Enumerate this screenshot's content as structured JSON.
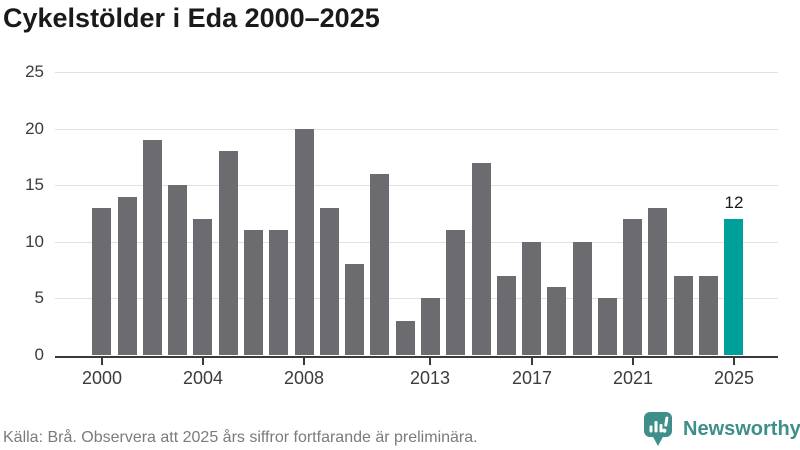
{
  "title": "Cykelstölder i Eda 2000–2025",
  "footer": {
    "source_note": "Källa: Brå. Observera att 2025 års siffror fortfarande är preliminära.",
    "brand_name": "Newsworthy",
    "brand_icon": "newsworthy-chart-bubble-icon"
  },
  "colors": {
    "bar": "#6c6b70",
    "highlight": "#00a09a",
    "brand": "#3e8e8a",
    "grid": "#e1e1e1",
    "axis": "#3a3a3a",
    "tick_label": "#3c3c3c",
    "title_text": "#1a1a1a",
    "source_text": "#7b7b7b"
  },
  "chart_data": {
    "type": "bar",
    "title": "Cykelstölder i Eda 2000–2025",
    "categories": [
      2000,
      2001,
      2002,
      2003,
      2004,
      2005,
      2006,
      2007,
      2008,
      2009,
      2010,
      2011,
      2012,
      2013,
      2014,
      2015,
      2016,
      2017,
      2018,
      2019,
      2020,
      2021,
      2022,
      2023,
      2024,
      2025
    ],
    "values": [
      13,
      14,
      19,
      15,
      12,
      18,
      11,
      11,
      20,
      13,
      8,
      16,
      3,
      5,
      11,
      17,
      7,
      10,
      6,
      10,
      5,
      12,
      13,
      7,
      7,
      12
    ],
    "highlighted_category": 2025,
    "highlighted_value_label": "12",
    "x_tick_years": [
      2000,
      2004,
      2008,
      2013,
      2017,
      2021,
      2025
    ],
    "y_ticks": [
      0,
      5,
      10,
      15,
      20,
      25
    ],
    "ylim": [
      0,
      25
    ],
    "grid": true,
    "legend": "none",
    "xlabel": "",
    "ylabel": ""
  }
}
